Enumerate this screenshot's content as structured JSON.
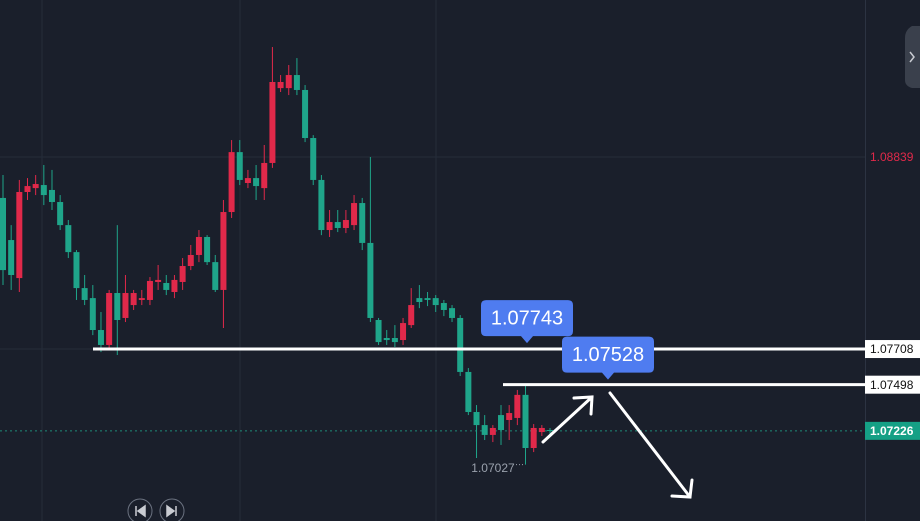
{
  "chart_data": {
    "type": "candlestick",
    "up_color": "#e0294a",
    "down_color": "#1fa58a",
    "ylim": [
      1.06695,
      1.09764
    ],
    "open": [
      1.08598,
      1.0835,
      1.08126,
      1.08633,
      1.08656,
      1.08674,
      1.08645,
      1.08574,
      1.08438,
      1.08279,
      1.08067,
      1.08008,
      1.0782,
      1.07732,
      1.08038,
      1.07891,
      1.07967,
      1.07997,
      1.07997,
      1.08103,
      1.08097,
      1.08044,
      1.08103,
      1.08197,
      1.08262,
      1.08368,
      1.0822,
      1.08056,
      1.08515,
      1.08868,
      1.08686,
      1.08715,
      1.08656,
      1.08804,
      1.09245,
      1.09245,
      1.09322,
      1.09234,
      1.08951,
      1.08704,
      1.08409,
      1.08456,
      1.08421,
      1.08438,
      1.08568,
      1.08333,
      1.07879,
      1.07773,
      1.07773,
      1.07761,
      1.07849,
      1.08008,
      1.08008,
      1.08008,
      1.07979,
      1.07949,
      1.07891,
      1.07573,
      1.07337,
      1.0726,
      1.07202,
      1.07319,
      1.0729,
      1.07302,
      1.07438,
      1.07125,
      1.07219,
      1.07231
    ],
    "high": [
      1.08733,
      1.08438,
      1.08704,
      1.08715,
      1.08733,
      1.08792,
      1.08763,
      1.08615,
      1.08468,
      1.08291,
      1.08144,
      1.08085,
      1.07926,
      1.08056,
      1.08438,
      1.08144,
      1.08056,
      1.08056,
      1.08132,
      1.08203,
      1.08144,
      1.08144,
      1.08244,
      1.08321,
      1.08409,
      1.08379,
      1.08262,
      1.08586,
      1.08939,
      1.08939,
      1.08763,
      1.08792,
      1.0891,
      1.09487,
      1.09322,
      1.09381,
      1.09422,
      1.09263,
      1.08968,
      1.08733,
      1.08527,
      1.08527,
      1.08527,
      1.08615,
      1.08598,
      1.08839,
      1.07891,
      1.0782,
      1.07849,
      1.07891,
      1.08067,
      1.08085,
      1.08044,
      1.08026,
      1.07997,
      1.07967,
      1.07908,
      1.07596,
      1.07378,
      1.07319,
      1.0726,
      1.07378,
      1.07378,
      1.07467,
      1.07496,
      1.07266,
      1.0726,
      1.07243
    ],
    "low": [
      1.08085,
      1.08056,
      1.08044,
      1.08586,
      1.08615,
      1.08556,
      1.08527,
      1.08409,
      1.08244,
      1.07997,
      1.07967,
      1.0779,
      1.0769,
      1.07702,
      1.07673,
      1.07867,
      1.07938,
      1.07967,
      1.07967,
      1.08056,
      1.08026,
      1.08008,
      1.08056,
      1.08173,
      1.0822,
      1.08203,
      1.08044,
      1.07832,
      1.0848,
      1.08674,
      1.08656,
      1.08586,
      1.08586,
      1.08775,
      1.09222,
      1.09204,
      1.09204,
      1.08927,
      1.08674,
      1.08379,
      1.08368,
      1.08397,
      1.08391,
      1.08409,
      1.08291,
      1.07867,
      1.07732,
      1.07732,
      1.0772,
      1.07732,
      1.07832,
      1.07949,
      1.07961,
      1.07926,
      1.07902,
      1.07867,
      1.07549,
      1.07319,
      1.07066,
      1.07172,
      1.0716,
      1.07143,
      1.07172,
      1.0726,
      1.07027,
      1.07101,
      1.07196,
      1.07208
    ],
    "close": [
      1.08173,
      1.08144,
      1.08633,
      1.08668,
      1.0868,
      1.08615,
      1.08574,
      1.08438,
      1.08279,
      1.08067,
      1.07997,
      1.0782,
      1.07732,
      1.08038,
      1.07879,
      1.08038,
      1.08038,
      1.08008,
      1.08109,
      1.08115,
      1.08056,
      1.08115,
      1.08197,
      1.08262,
      1.08368,
      1.0822,
      1.08056,
      1.08515,
      1.08868,
      1.08704,
      1.08715,
      1.08668,
      1.08804,
      1.09281,
      1.09281,
      1.09322,
      1.09234,
      1.08951,
      1.08704,
      1.08409,
      1.08456,
      1.08421,
      1.08468,
      1.08568,
      1.08333,
      1.07891,
      1.07749,
      1.07761,
      1.07749,
      1.07861,
      1.07967,
      1.07985,
      1.07997,
      1.07967,
      1.07938,
      1.07891,
      1.07573,
      1.07337,
      1.0726,
      1.07202,
      1.07243,
      1.07231,
      1.07331,
      1.07438,
      1.07125,
      1.07243,
      1.07243,
      1.07226
    ],
    "axis_labels": [
      1.08839,
      1.07708,
      1.07498,
      1.07226
    ],
    "levels": [
      1.07708,
      1.07498
    ],
    "callouts": [
      1.07743,
      1.07528
    ],
    "current_price": 1.07226,
    "low_label": 1.07027
  }
}
